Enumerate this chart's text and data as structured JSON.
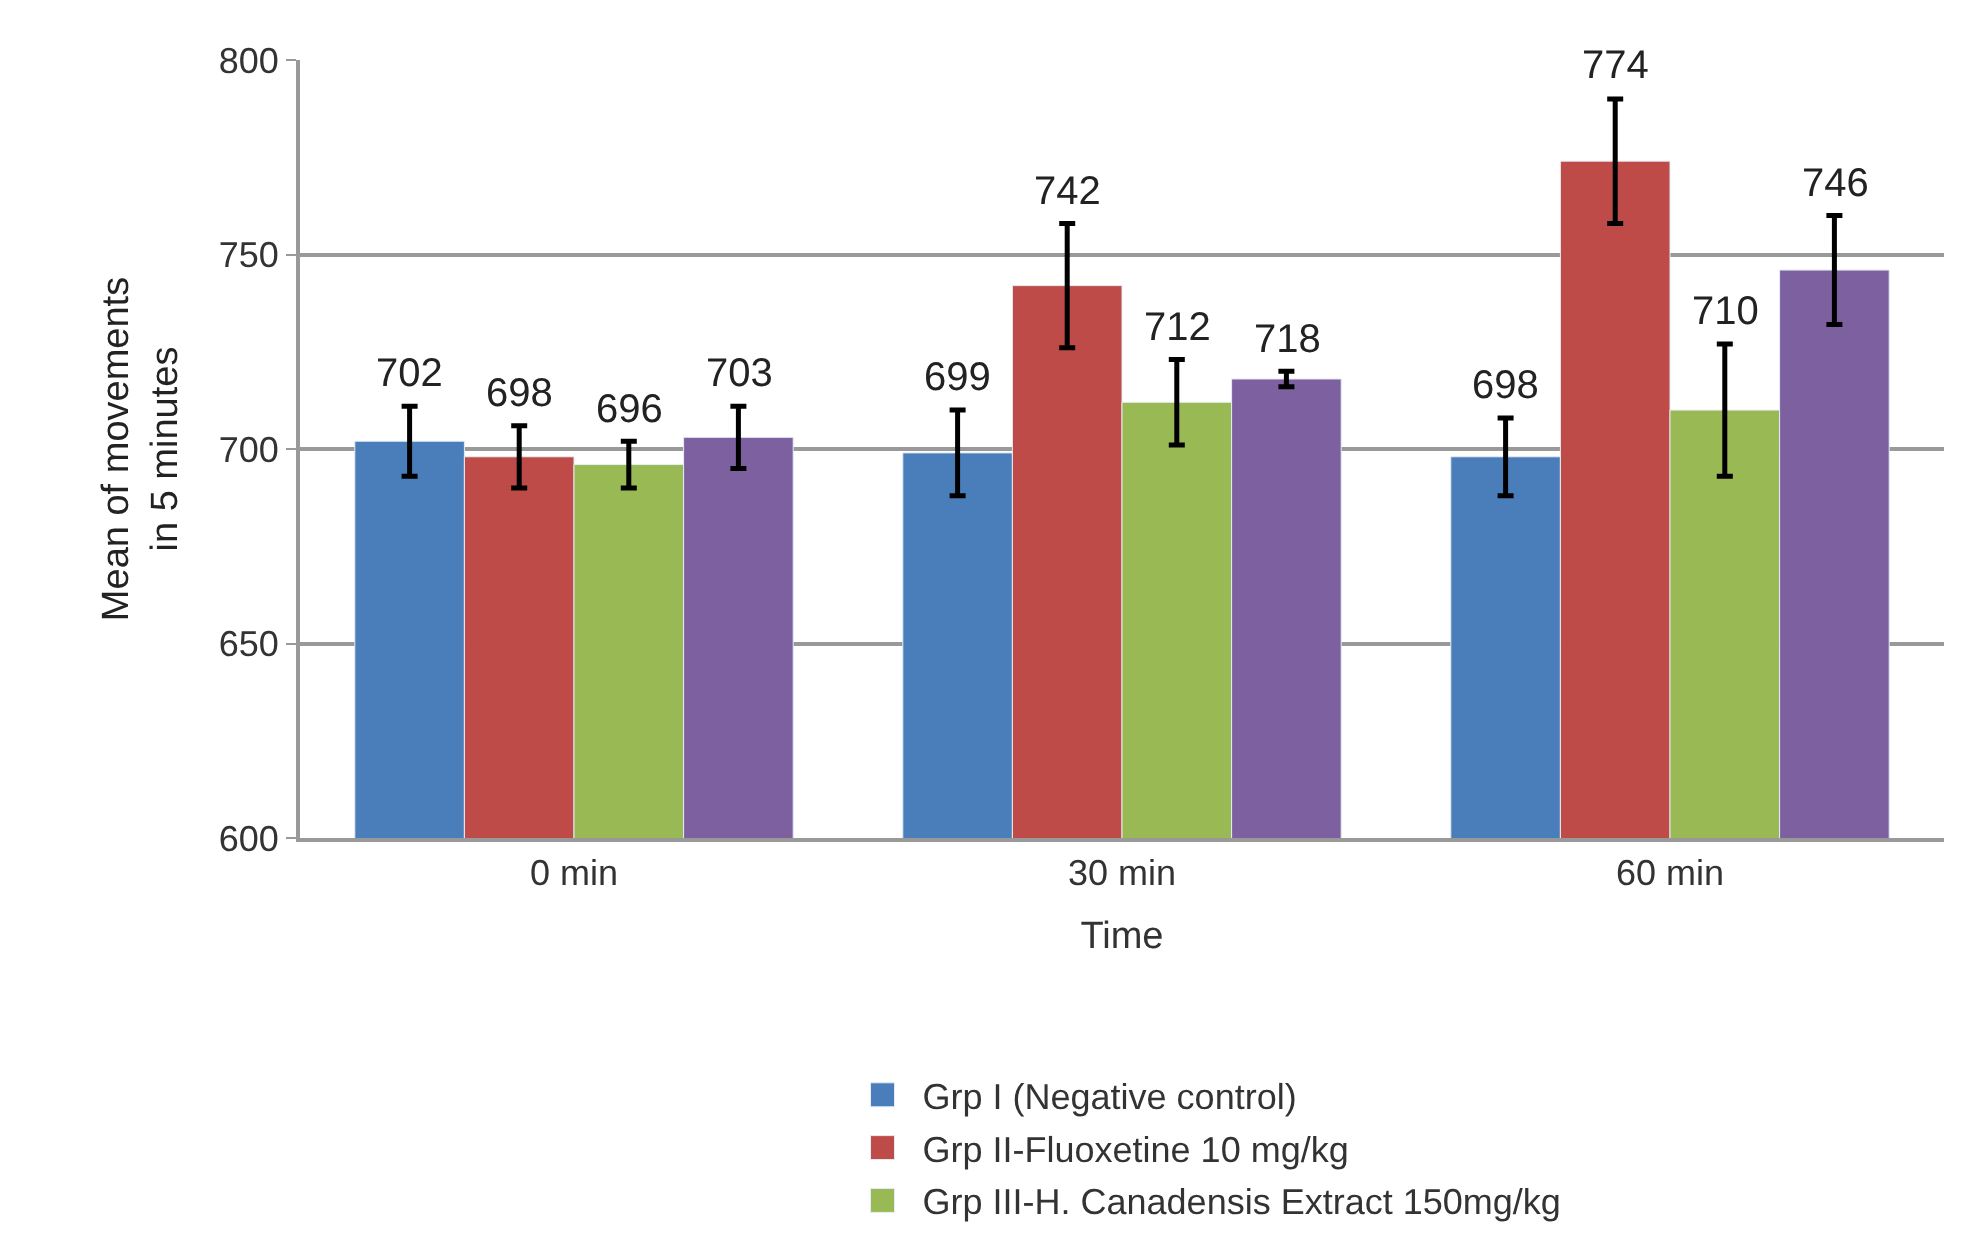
{
  "chart_data": {
    "type": "bar",
    "xlabel": "Time",
    "ylabel": "Mean of movements in 5 minutes",
    "categories": [
      "0 min",
      "30 min",
      "60 min"
    ],
    "series": [
      {
        "name": "Grp I (Negative control)",
        "color": "#4a7ebb",
        "values": [
          702,
          699,
          698
        ],
        "errors": [
          9,
          11,
          10
        ]
      },
      {
        "name": "Grp II-Fluoxetine 10 mg/kg",
        "color": "#be4b48",
        "values": [
          698,
          742,
          774
        ],
        "errors": [
          8,
          16,
          16
        ]
      },
      {
        "name": "Grp III-H. Canadensis Extract 150mg/kg",
        "color": "#98b954",
        "values": [
          696,
          712,
          710
        ],
        "errors": [
          6,
          11,
          17
        ]
      },
      {
        "color": "#7d60a0",
        "values": [
          703,
          718,
          746
        ],
        "errors": [
          8,
          2,
          14
        ]
      }
    ],
    "ylim": [
      600,
      800
    ],
    "yticks": [
      600,
      650,
      700,
      750,
      800
    ],
    "grid": "y",
    "legend": "bottom",
    "data_labels": true
  }
}
